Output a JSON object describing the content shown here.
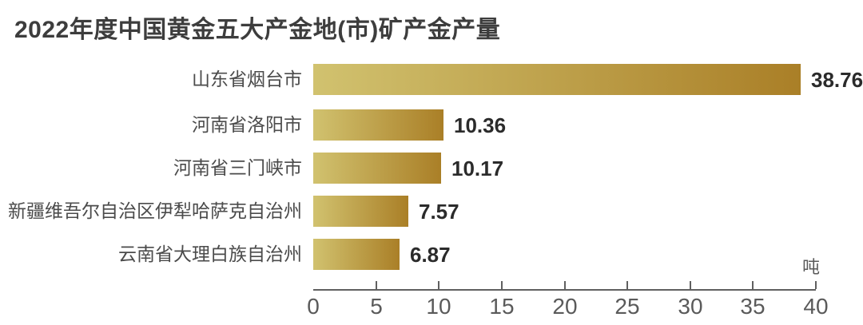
{
  "title": "2022年度中国黄金五大产金地(市)矿产金产量",
  "chart_data": {
    "type": "bar",
    "orientation": "horizontal",
    "title": "2022年度中国黄金五大产金地(市)矿产金产量",
    "categories": [
      "山东省烟台市",
      "河南省洛阳市",
      "河南省三门峡市",
      "新疆维吾尔自治区伊犁哈萨克自治州",
      "云南省大理白族自治州"
    ],
    "values": [
      38.76,
      10.36,
      10.17,
      7.57,
      6.87
    ],
    "value_labels": [
      "38.76",
      "10.36",
      "10.17",
      "7.57",
      "6.87"
    ],
    "unit": "吨",
    "xlabel": "",
    "ylabel": "",
    "xlim": [
      0,
      40
    ],
    "x_ticks": [
      0,
      5,
      10,
      15,
      20,
      25,
      30,
      35,
      40
    ],
    "grid": false,
    "legend": "none",
    "bar_gradient": [
      "#d1c26f",
      "#aa7f27"
    ]
  },
  "colors": {
    "background": "#ffffff",
    "title": "#3d3d3d",
    "category_label": "#4b4b4b",
    "value_label": "#2b2b2b",
    "axis": "#606060",
    "tick_label": "#5a5a5a",
    "bar_start": "#d1c26f",
    "bar_end": "#aa7f27"
  }
}
